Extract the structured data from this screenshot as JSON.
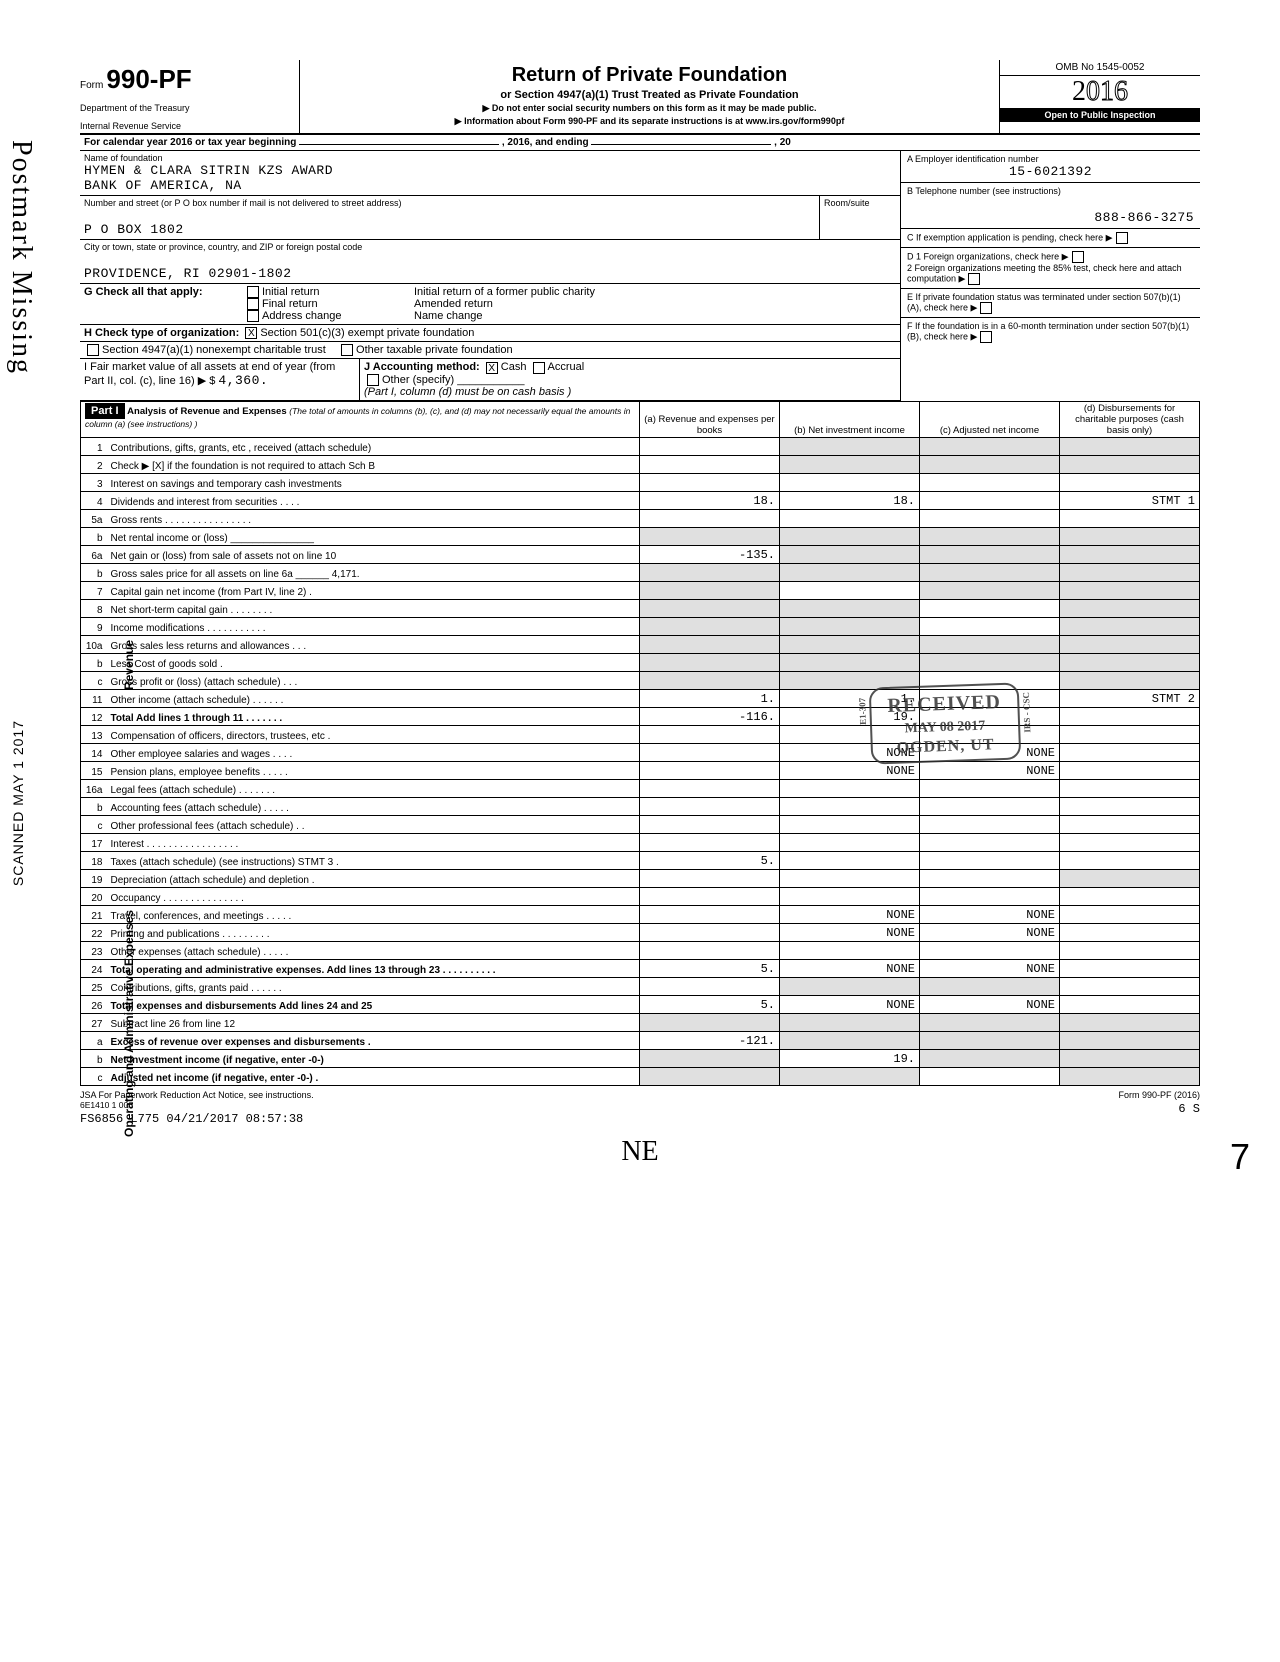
{
  "vertical_stamp": "Postmark Missing",
  "vertical_scanned": "SCANNED MAY 1 2017",
  "header": {
    "form_word": "Form",
    "form_number": "990-PF",
    "dept1": "Department of the Treasury",
    "dept2": "Internal Revenue Service",
    "title": "Return of Private Foundation",
    "subtitle": "or Section 4947(a)(1) Trust Treated as Private Foundation",
    "instr1": "▶ Do not enter social security numbers on this form as it may be made public.",
    "instr2": "▶ Information about Form 990-PF and its separate instructions is at www.irs.gov/form990pf",
    "omb": "OMB No 1545-0052",
    "year_plain": "2",
    "year_outline": "016",
    "inspection": "Open to Public Inspection"
  },
  "calendar_line": {
    "prefix": "For calendar year 2016 or tax year beginning",
    "mid": ", 2016, and ending",
    "end": ", 20"
  },
  "foundation": {
    "name_label": "Name of foundation",
    "name": "HYMEN & CLARA SITRIN KZS AWARD",
    "name2": "BANK OF AMERICA, NA",
    "addr_label": "Number and street (or P O  box number if mail is not delivered to street address)",
    "addr": "P O BOX 1802",
    "room_label": "Room/suite",
    "city_label": "City or town, state or province, country, and ZIP or foreign postal code",
    "city": "PROVIDENCE, RI 02901-1802",
    "ein_label": "A   Employer identification number",
    "ein": "15-6021392",
    "phone_label": "B   Telephone number (see instructions)",
    "phone": "888-866-3275"
  },
  "checks": {
    "g_label": "G  Check all that apply:",
    "g1": "Initial return",
    "g2": "Final return",
    "g3": "Address change",
    "g4": "Initial return of a former public charity",
    "g5": "Amended return",
    "g6": "Name change",
    "h_label": "H  Check type of organization:",
    "h1": "Section 501(c)(3) exempt private foundation",
    "h2": "Section 4947(a)(1) nonexempt charitable trust",
    "h3": "Other taxable private foundation",
    "i_label": "I   Fair market value of all assets at end of year (from Part II, col. (c), line 16) ▶ $",
    "i_value": "4,360.",
    "j_label": "J  Accounting method:",
    "j1": "Cash",
    "j2": "Accrual",
    "j3": "Other (specify)",
    "j_note": "(Part I, column (d) must be on cash basis )",
    "c_label": "C   If exemption application is pending, check here",
    "d1": "D  1  Foreign organizations, check here",
    "d2": "2  Foreign organizations meeting the 85% test, check here and attach computation",
    "e": "E   If private foundation status was terminated under section 507(b)(1)(A), check here",
    "f": "F   If the foundation is in a 60-month termination under section 507(b)(1)(B), check here"
  },
  "part1": {
    "label": "Part I",
    "title": "Analysis of Revenue and Expenses",
    "note": "(The total of amounts in columns (b), (c), and (d) may not necessarily equal the amounts in column (a) (see instructions) )",
    "col_a": "(a) Revenue and expenses per books",
    "col_b": "(b) Net investment income",
    "col_c": "(c) Adjusted net income",
    "col_d": "(d) Disbursements for charitable purposes (cash basis only)"
  },
  "side": {
    "revenue": "Revenue",
    "operating": "Operating and Administrative Expenses"
  },
  "rows": [
    {
      "n": "1",
      "d": "Contributions, gifts, grants, etc , received (attach schedule)",
      "a": "",
      "b": "",
      "c": "",
      "dX": "",
      "shB": true,
      "shC": true,
      "shD": true
    },
    {
      "n": "2",
      "d": "Check ▶  [X]  if the foundation is not required to attach Sch B",
      "a": "",
      "b": "",
      "c": "",
      "dX": "",
      "shB": true,
      "shC": true,
      "shD": true,
      "small": true
    },
    {
      "n": "3",
      "d": "Interest on savings and temporary cash investments",
      "a": "",
      "b": "",
      "c": "",
      "dX": ""
    },
    {
      "n": "4",
      "d": "Dividends and interest from securities  .  .  .  .",
      "a": "18.",
      "b": "18.",
      "c": "",
      "dX": "STMT 1"
    },
    {
      "n": "5a",
      "d": "Gross rents  .  .  .  .  .  .  .  .  .  .  .  .  .  .  .  .",
      "a": "",
      "b": "",
      "c": "",
      "dX": ""
    },
    {
      "n": "b",
      "d": "Net rental income or (loss) _______________",
      "a": "",
      "b": "",
      "c": "",
      "dX": "",
      "shA": true,
      "shB": true,
      "shC": true,
      "shD": true
    },
    {
      "n": "6a",
      "d": "Net gain or (loss) from sale of assets not on line 10",
      "a": "-135.",
      "b": "",
      "c": "",
      "dX": "",
      "shB": true,
      "shC": true,
      "shD": true,
      "small": true
    },
    {
      "n": "b",
      "d": "Gross sales price for all assets on line 6a ______ 4,171.",
      "a": "",
      "b": "",
      "c": "",
      "dX": "",
      "shA": true,
      "shB": true,
      "shC": true,
      "shD": true,
      "small": true
    },
    {
      "n": "7",
      "d": "Capital gain net income (from Part IV, line 2)  .",
      "a": "",
      "b": "",
      "c": "",
      "dX": "",
      "shA": true,
      "shC": true,
      "shD": true
    },
    {
      "n": "8",
      "d": "Net short-term capital gain  .  .  .  .  .  .  .  .",
      "a": "",
      "b": "",
      "c": "",
      "dX": "",
      "shA": true,
      "shB": true,
      "shD": true
    },
    {
      "n": "9",
      "d": "Income modifications  .  .  .  .  .  .  .  .  .  .  .",
      "a": "",
      "b": "",
      "c": "",
      "dX": "",
      "shA": true,
      "shB": true,
      "shD": true
    },
    {
      "n": "10a",
      "d": "Gross sales less returns and allowances  .  .  .",
      "a": "",
      "b": "",
      "c": "",
      "dX": "",
      "shA": true,
      "shB": true,
      "shC": true,
      "shD": true,
      "small": true
    },
    {
      "n": "b",
      "d": "Less Cost of goods sold  .",
      "a": "",
      "b": "",
      "c": "",
      "dX": "",
      "shA": true,
      "shB": true,
      "shC": true,
      "shD": true
    },
    {
      "n": "c",
      "d": "Gross profit or (loss) (attach schedule)  .  .  .",
      "a": "",
      "b": "",
      "c": "",
      "dX": "",
      "shA": true,
      "shB": true,
      "shD": true
    },
    {
      "n": "11",
      "d": "Other income (attach schedule)  .  .  .  .  .  .",
      "a": "1.",
      "b": "1.",
      "c": "",
      "dX": "STMT 2"
    },
    {
      "n": "12",
      "d": "Total Add lines 1 through 11  .  .  .  .  .  .  .",
      "a": "-116.",
      "b": "19.",
      "c": "",
      "dX": "",
      "bold": true
    },
    {
      "n": "13",
      "d": "Compensation of officers, directors, trustees, etc  .",
      "a": "",
      "b": "",
      "c": "",
      "dX": ""
    },
    {
      "n": "14",
      "d": "Other employee salaries and wages  .  .  .  .",
      "a": "",
      "b": "NONE",
      "c": "NONE",
      "dX": ""
    },
    {
      "n": "15",
      "d": "Pension plans, employee benefits  .  .  .  .  .",
      "a": "",
      "b": "NONE",
      "c": "NONE",
      "dX": ""
    },
    {
      "n": "16a",
      "d": "Legal fees (attach schedule)  .  .  .  .  .  .  .",
      "a": "",
      "b": "",
      "c": "",
      "dX": ""
    },
    {
      "n": "b",
      "d": "Accounting fees (attach schedule)  .  .  .  .  .",
      "a": "",
      "b": "",
      "c": "",
      "dX": ""
    },
    {
      "n": "c",
      "d": "Other professional fees (attach schedule)  .  .",
      "a": "",
      "b": "",
      "c": "",
      "dX": ""
    },
    {
      "n": "17",
      "d": "Interest  .  .  .  .  .  .  .  .  .  .  .  .  .  .  .  .  .",
      "a": "",
      "b": "",
      "c": "",
      "dX": ""
    },
    {
      "n": "18",
      "d": "Taxes (attach schedule) (see instructions) STMT 3  .",
      "a": "5.",
      "b": "",
      "c": "",
      "dX": ""
    },
    {
      "n": "19",
      "d": "Depreciation (attach schedule) and depletion  .",
      "a": "",
      "b": "",
      "c": "",
      "dX": "",
      "shD": true
    },
    {
      "n": "20",
      "d": "Occupancy  .  .  .  .  .  .  .  .  .  .  .  .  .  .  .",
      "a": "",
      "b": "",
      "c": "",
      "dX": ""
    },
    {
      "n": "21",
      "d": "Travel, conferences, and meetings  .  .  .  .  .",
      "a": "",
      "b": "NONE",
      "c": "NONE",
      "dX": ""
    },
    {
      "n": "22",
      "d": "Printing and publications  .  .  .  .  .  .  .  .  .",
      "a": "",
      "b": "NONE",
      "c": "NONE",
      "dX": ""
    },
    {
      "n": "23",
      "d": "Other expenses (attach schedule)  .  .  .  .  .",
      "a": "",
      "b": "",
      "c": "",
      "dX": ""
    },
    {
      "n": "24",
      "d": "Total operating and administrative expenses. Add lines 13 through 23  .  .  .  .  .  .  .  .  .  .",
      "a": "5.",
      "b": "NONE",
      "c": "NONE",
      "dX": "",
      "bold": true
    },
    {
      "n": "25",
      "d": "Contributions, gifts, grants paid  .  .  .  .  .  .",
      "a": "",
      "b": "",
      "c": "",
      "dX": "",
      "shB": true,
      "shC": true
    },
    {
      "n": "26",
      "d": "Total expenses and disbursements Add lines 24 and 25",
      "a": "5.",
      "b": "NONE",
      "c": "NONE",
      "dX": "",
      "bold": true,
      "small": true
    },
    {
      "n": "27",
      "d": "Subtract line 26 from line 12",
      "a": "",
      "b": "",
      "c": "",
      "dX": "",
      "shA": true,
      "shB": true,
      "shC": true,
      "shD": true
    },
    {
      "n": "a",
      "d": "Excess of revenue over expenses and disbursements  .",
      "a": "-121.",
      "b": "",
      "c": "",
      "dX": "",
      "bold": true,
      "shB": true,
      "shC": true,
      "shD": true,
      "small": true
    },
    {
      "n": "b",
      "d": "Net investment income (if negative, enter -0-)",
      "a": "",
      "b": "19.",
      "c": "",
      "dX": "",
      "bold": true,
      "shA": true,
      "shC": true,
      "shD": true
    },
    {
      "n": "c",
      "d": "Adjusted net income (if negative, enter -0-)  .",
      "a": "",
      "b": "",
      "c": "",
      "dX": "",
      "bold": true,
      "shA": true,
      "shB": true,
      "shD": true
    }
  ],
  "stamp": {
    "r1": "RECEIVED",
    "r2": "MAY 08 2017",
    "r3": "OGDEN, UT",
    "left": "E1-307",
    "right": "IRS - CSC"
  },
  "footer": {
    "jsa": "JSA  For Paperwork Reduction Act Notice, see instructions.",
    "code": "6E1410 1 000",
    "stamp_line": "FS6856 L775 04/21/2017 08:57:38",
    "form": "Form 990-PF (2016)",
    "nums": "6        S"
  },
  "ne": "NE",
  "page_num": "7"
}
